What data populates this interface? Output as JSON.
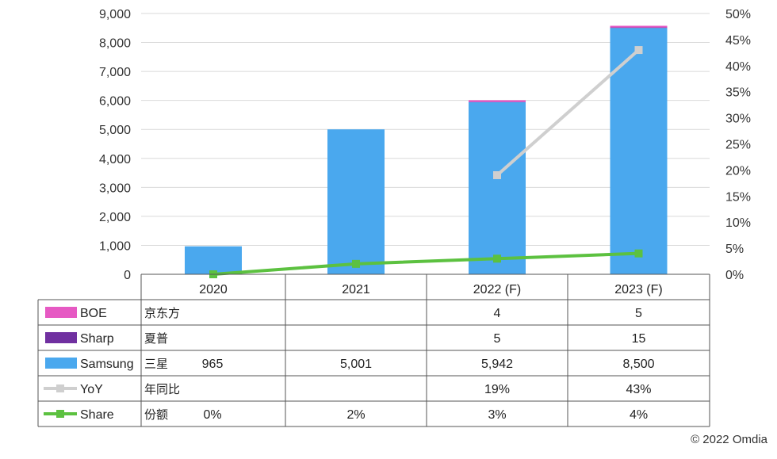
{
  "chart_data": {
    "type": "bar",
    "categories": [
      "2020",
      "2021",
      "2022 (F)",
      "2023 (F)"
    ],
    "y_left": {
      "min": 0,
      "max": 9000,
      "ticks": [
        "0",
        "1,000",
        "2,000",
        "3,000",
        "4,000",
        "5,000",
        "6,000",
        "7,000",
        "8,000",
        "9,000"
      ]
    },
    "y_right": {
      "min": 0,
      "max": 50,
      "ticks": [
        "0%",
        "5%",
        "10%",
        "15%",
        "20%",
        "25%",
        "30%",
        "35%",
        "40%",
        "45%",
        "50%"
      ]
    },
    "stacked_series": [
      {
        "name": "Samsung",
        "cn": "三星",
        "color": "#4aa8ee",
        "values": [
          965,
          5001,
          5942,
          8500
        ],
        "labels": [
          "965",
          "5,001",
          "5,942",
          "8,500"
        ]
      },
      {
        "name": "Sharp",
        "cn": "夏普",
        "color": "#7030a0",
        "values": [
          0,
          0,
          5,
          15
        ],
        "labels": [
          "",
          "",
          "5",
          "15"
        ]
      },
      {
        "name": "BOE",
        "cn": "京东方",
        "color": "#e659c3",
        "values": [
          0,
          0,
          4,
          5
        ],
        "labels": [
          "",
          "",
          "4",
          "5"
        ]
      }
    ],
    "line_series": [
      {
        "name": "YoY",
        "cn": "年同比",
        "color": "#cfcfcf",
        "axis": "right",
        "values": [
          null,
          null,
          19,
          43
        ],
        "labels": [
          "",
          "",
          "19%",
          "43%"
        ]
      },
      {
        "name": "Share",
        "cn": "份额",
        "color": "#5cc140",
        "axis": "right",
        "values": [
          0,
          2,
          3,
          4
        ],
        "labels": [
          "0%",
          "2%",
          "3%",
          "4%"
        ]
      }
    ],
    "table_order": [
      "BOE",
      "Sharp",
      "Samsung",
      "YoY",
      "Share"
    ],
    "source": "© 2022 Omdia",
    "grid": true
  }
}
